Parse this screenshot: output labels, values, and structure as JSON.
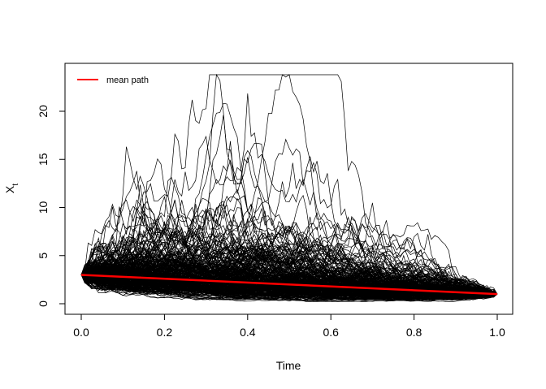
{
  "chart_data": {
    "type": "line",
    "title": "",
    "xlabel": "Time",
    "ylabel": "X",
    "ylabel_subscript": "t",
    "xlim": [
      0.0,
      1.0
    ],
    "ylim": [
      0,
      24
    ],
    "x_ticks": [
      "0.0",
      "0.2",
      "0.4",
      "0.6",
      "0.8",
      "1.0"
    ],
    "y_ticks": [
      "0",
      "5",
      "10",
      "15",
      "20"
    ],
    "grid": false,
    "legend": {
      "position": "top-left",
      "entries": [
        {
          "name": "mean path",
          "color": "#ff0000"
        }
      ]
    },
    "series": [
      {
        "name": "mean path",
        "color": "#ff0000",
        "x": [
          0.0,
          1.0
        ],
        "y": [
          3.0,
          1.0
        ]
      }
    ],
    "simulated_paths": {
      "color": "#000000",
      "start": 3.0,
      "end": 1.0,
      "approx_max": 23.5,
      "approx_max_x": 0.49,
      "secondary_peak": 20.3,
      "secondary_peak_x": 0.34
    }
  }
}
